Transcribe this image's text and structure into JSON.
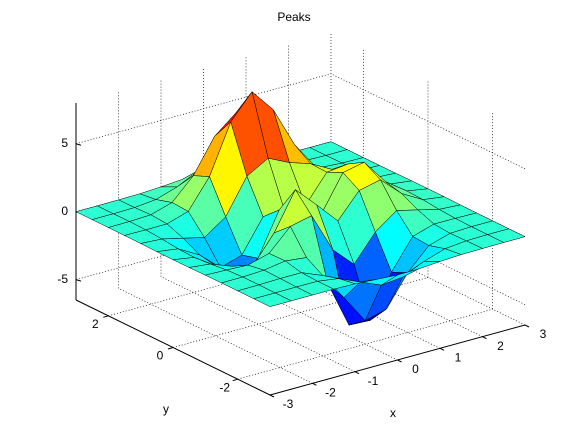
{
  "chart_data": {
    "type": "surface",
    "title": "Peaks",
    "x_label": "x",
    "y_label": "y",
    "x": [
      -3,
      -2.5,
      -2,
      -1.5,
      -1,
      -0.5,
      0,
      0.5,
      1,
      1.5,
      2,
      2.5,
      3
    ],
    "y": [
      -3,
      -2.5,
      -2,
      -1.5,
      -1,
      -0.5,
      0,
      0.5,
      1,
      1.5,
      2,
      2.5,
      3
    ],
    "z": [
      [
        0,
        0,
        0,
        0,
        -0.03,
        -0.14,
        -0.24,
        -0.22,
        -0.11,
        -0.03,
        -0.01,
        0,
        0
      ],
      [
        0,
        0,
        0.01,
        0,
        -0.23,
        -0.91,
        -1.57,
        -1.41,
        -0.69,
        -0.18,
        -0.03,
        0,
        0
      ],
      [
        0,
        0.01,
        0.05,
        0.05,
        -0.59,
        -2.64,
        -4.76,
        -4.35,
        -2.1,
        -0.53,
        -0.06,
        0,
        0
      ],
      [
        0,
        0.01,
        0.08,
        0.33,
        0.15,
        -2.19,
        -5.68,
        -5.76,
        -2.64,
        -0.44,
        0.04,
        0.03,
        0
      ],
      [
        -0.01,
        -0.06,
        -0.13,
        0.3,
        1.86,
        2.22,
        -0.72,
        -2.22,
        -0.27,
        0.88,
        0.5,
        0.11,
        0.01
      ],
      [
        -0.03,
        -0.2,
        -0.8,
        -1.21,
        0.8,
        3.55,
        2,
        0.39,
        2.2,
        2.56,
        1.12,
        0.24,
        0.03
      ],
      [
        -0.04,
        -0.3,
        -1.33,
        -2.77,
        -1.65,
        1.48,
        0.98,
        0.38,
        2.94,
        3.27,
        1.41,
        0.3,
        0.03
      ],
      [
        -0.03,
        -0.25,
        -1.12,
        -2.49,
        -2,
        0.39,
        0.46,
        0.38,
        2.38,
        2.56,
        1.1,
        0.23,
        0.03
      ],
      [
        -0.01,
        -0.11,
        -0.48,
        -0.86,
        0.23,
        2.79,
        3.69,
        2.94,
        2.43,
        1.58,
        0.58,
        0.11,
        0.01
      ],
      [
        0,
        -0.02,
        -0.01,
        0.48,
        2.61,
        6.2,
        8,
        6.25,
        3.25,
        1.18,
        0.29,
        0.05,
        0
      ],
      [
        0,
        0.01,
        0.08,
        0.55,
        2.1,
        4.56,
        5.86,
        4.57,
        2.21,
        0.68,
        0.13,
        0.02,
        0
      ],
      [
        0,
        0,
        0.03,
        0.19,
        0.69,
        1.47,
        1.89,
        1.47,
        0.7,
        0.21,
        0.04,
        0,
        0
      ],
      [
        0,
        0,
        0.01,
        0.03,
        0.11,
        0.23,
        0.3,
        0.23,
        0.11,
        0.03,
        0.01,
        0,
        0
      ]
    ],
    "xlim": [
      -3,
      3
    ],
    "ylim": [
      -3,
      3
    ],
    "zlim": [
      -6.5,
      8
    ],
    "xticks": [
      -3,
      -2,
      -1,
      0,
      1,
      2,
      3
    ],
    "yticks": [
      -2,
      0,
      2
    ],
    "zticks": [
      -5,
      0,
      5
    ],
    "grid": true,
    "colormap": "jet"
  }
}
